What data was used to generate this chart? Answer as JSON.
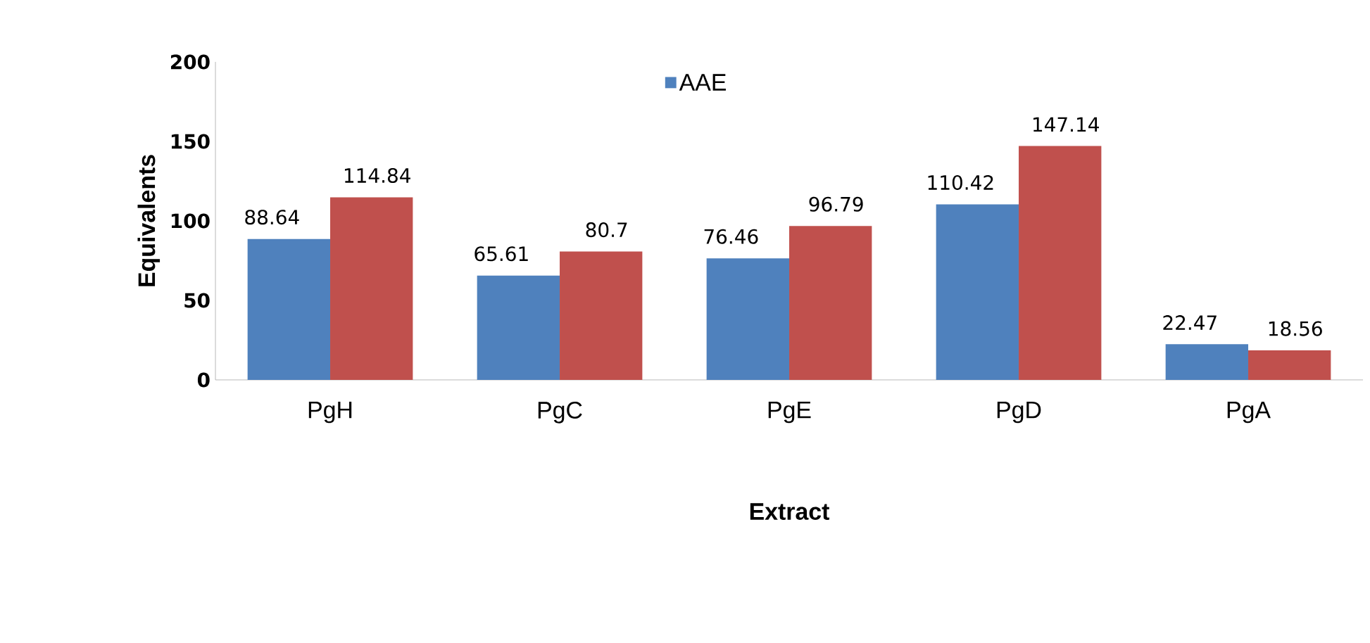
{
  "chart_data": {
    "type": "bar",
    "xlabel": "Extract",
    "ylabel": "Equivalents",
    "categories": [
      "PgH",
      "PgC",
      "PgE",
      "PgD",
      "PgA"
    ],
    "series": [
      {
        "name": "AAE",
        "color": "#4f81bd",
        "values": [
          88.64,
          65.61,
          76.46,
          110.42,
          22.47
        ]
      },
      {
        "color": "#c0504d",
        "values": [
          114.84,
          80.7,
          96.79,
          147.14,
          18.56
        ]
      }
    ],
    "ylim": [
      0,
      200
    ],
    "yticks": [
      0,
      50,
      100,
      150,
      200
    ],
    "grid": false,
    "legend": "top",
    "data_labels": true
  }
}
